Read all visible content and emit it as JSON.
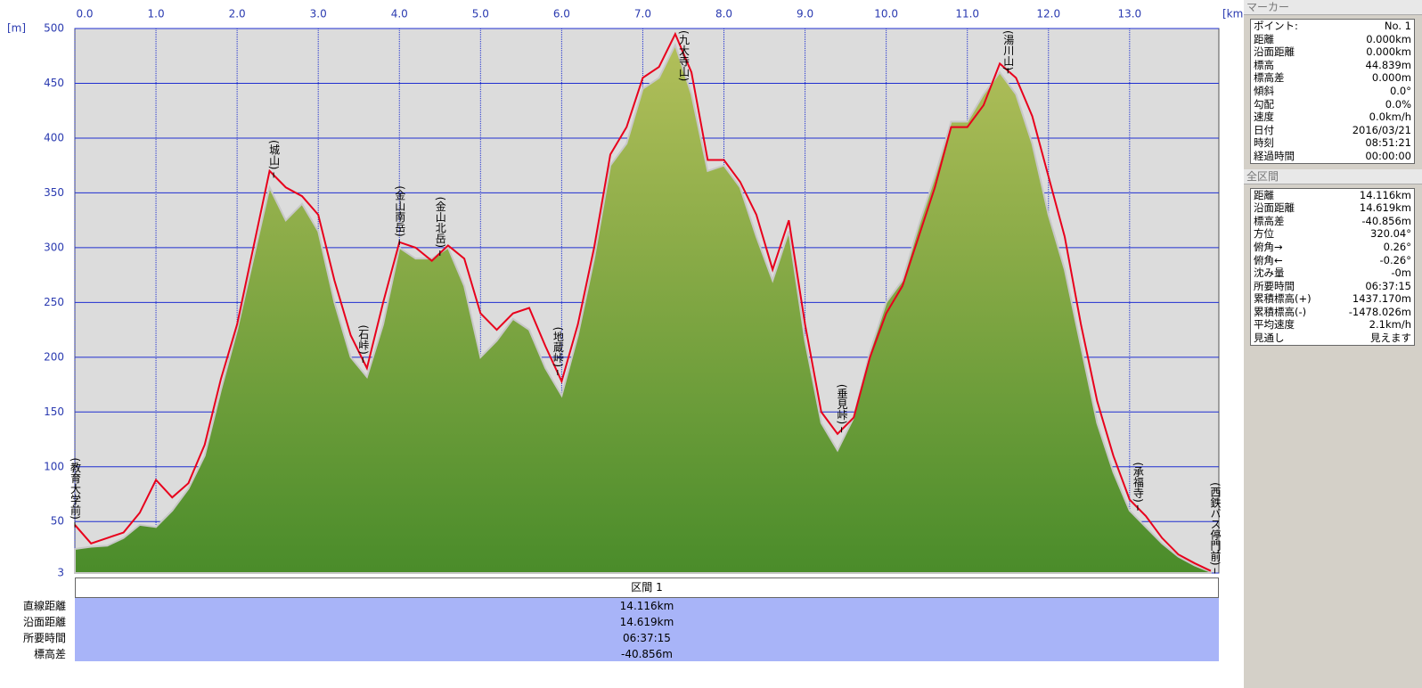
{
  "chart_data": {
    "type": "area",
    "x_label": "[km]",
    "y_label": "[m]",
    "x": [
      0,
      0.2,
      0.4,
      0.6,
      0.8,
      1,
      1.2,
      1.4,
      1.6,
      1.8,
      2,
      2.2,
      2.4,
      2.6,
      2.8,
      3,
      3.2,
      3.4,
      3.6,
      3.8,
      4,
      4.2,
      4.4,
      4.6,
      4.8,
      5,
      5.2,
      5.4,
      5.6,
      5.8,
      6,
      6.2,
      6.4,
      6.6,
      6.8,
      7,
      7.2,
      7.4,
      7.6,
      7.8,
      8,
      8.2,
      8.4,
      8.6,
      8.8,
      9,
      9.2,
      9.4,
      9.6,
      9.8,
      10,
      10.2,
      10.4,
      10.6,
      10.8,
      11,
      11.2,
      11.4,
      11.6,
      11.8,
      12,
      12.2,
      12.4,
      12.6,
      12.8,
      13,
      13.2,
      13.4,
      13.6,
      13.8,
      14
    ],
    "series": [
      {
        "type": "area",
        "color": "#5f9a2c",
        "values": [
          25,
          27,
          28,
          35,
          47,
          45,
          60,
          80,
          110,
          170,
          225,
          290,
          355,
          325,
          340,
          315,
          250,
          200,
          182,
          230,
          300,
          290,
          290,
          300,
          265,
          200,
          215,
          235,
          225,
          190,
          165,
          220,
          290,
          375,
          395,
          445,
          455,
          485,
          440,
          370,
          375,
          355,
          310,
          270,
          315,
          215,
          140,
          115,
          145,
          205,
          250,
          270,
          320,
          365,
          415,
          415,
          440,
          460,
          440,
          395,
          330,
          280,
          210,
          140,
          95,
          60,
          45,
          30,
          18,
          10,
          4
        ]
      },
      {
        "type": "line",
        "color": "#e8001c",
        "values": [
          47,
          30,
          35,
          40,
          58,
          88,
          72,
          85,
          120,
          180,
          230,
          300,
          370,
          355,
          347,
          330,
          270,
          220,
          190,
          250,
          305,
          300,
          288,
          302,
          290,
          240,
          225,
          240,
          245,
          210,
          178,
          230,
          300,
          385,
          410,
          455,
          465,
          495,
          460,
          380,
          380,
          360,
          330,
          280,
          325,
          230,
          150,
          130,
          145,
          200,
          240,
          265,
          310,
          355,
          410,
          410,
          430,
          468,
          455,
          420,
          365,
          310,
          230,
          160,
          110,
          70,
          55,
          35,
          20,
          12,
          5
        ]
      }
    ],
    "xlim": [
      0,
      14.1
    ],
    "ylim": [
      3,
      500
    ],
    "xticks": [
      {
        "value": 0,
        "label": "0.0"
      },
      {
        "value": 1,
        "label": "1.0"
      },
      {
        "value": 2,
        "label": "2.0"
      },
      {
        "value": 3,
        "label": "3.0"
      },
      {
        "value": 4,
        "label": "4.0"
      },
      {
        "value": 5,
        "label": "5.0"
      },
      {
        "value": 6,
        "label": "6.0"
      },
      {
        "value": 7,
        "label": "7.0"
      },
      {
        "value": 8,
        "label": "8.0"
      },
      {
        "value": 9,
        "label": "9.0"
      },
      {
        "value": 10,
        "label": "10.0"
      },
      {
        "value": 11,
        "label": "11.0"
      },
      {
        "value": 12,
        "label": "12.0"
      },
      {
        "value": 13,
        "label": "13.0"
      }
    ],
    "yticks": [
      3,
      50,
      100,
      150,
      200,
      250,
      300,
      350,
      400,
      450,
      500
    ],
    "grid": true,
    "annotations": [
      {
        "text": "(教育大学前)",
        "x": 0
      },
      {
        "text": "(城山)",
        "x": 2.45
      },
      {
        "text": "(石峠)",
        "x": 3.55
      },
      {
        "text": "(金山南岳)",
        "x": 4.0
      },
      {
        "text": "(金山北岳)",
        "x": 4.5
      },
      {
        "text": "(地蔵峠)",
        "x": 5.95
      },
      {
        "text": "(九大寺山)",
        "x": 7.5
      },
      {
        "text": "(垂見峠)",
        "x": 9.45
      },
      {
        "text": "(湯川山)",
        "x": 11.5
      },
      {
        "text": "(承福寺)",
        "x": 13.1
      },
      {
        "text": "(西鉄バス停門前)",
        "x": 14.05
      }
    ]
  },
  "marker_panel": {
    "title": "マーカー",
    "rows": [
      [
        "ポイント:",
        "No. 1"
      ],
      [
        "距離",
        "0.000km"
      ],
      [
        "沿面距離",
        "0.000km"
      ],
      [
        "標高",
        "44.839m"
      ],
      [
        "標高差",
        "0.000m"
      ],
      [
        "傾斜",
        "0.0°"
      ],
      [
        "勾配",
        "0.0%"
      ],
      [
        "速度",
        "0.0km/h"
      ],
      [
        "日付",
        "2016/03/21"
      ],
      [
        "時刻",
        "08:51:21"
      ],
      [
        "経過時間",
        "00:00:00"
      ]
    ]
  },
  "total_panel": {
    "title": "全区間",
    "rows": [
      [
        "距離",
        "14.116km"
      ],
      [
        "沿面距離",
        "14.619km"
      ],
      [
        "標高差",
        "-40.856m"
      ],
      [
        "方位",
        "320.04°"
      ],
      [
        "俯角→",
        "0.26°"
      ],
      [
        "俯角←",
        "-0.26°"
      ],
      [
        "沈み量",
        "-0m"
      ],
      [
        "所要時間",
        "06:37:15"
      ],
      [
        "累積標高(+)",
        "1437.170m"
      ],
      [
        "累積標高(-)",
        "-1478.026m"
      ],
      [
        "平均速度",
        "2.1km/h"
      ],
      [
        "見通し",
        "見えます"
      ]
    ]
  },
  "section_table": {
    "header": "区間 1",
    "rows": [
      [
        "直線距離",
        "14.116km"
      ],
      [
        "沿面距離",
        "14.619km"
      ],
      [
        "所要時間",
        "06:37:15"
      ],
      [
        "標高差",
        "-40.856m"
      ]
    ]
  }
}
